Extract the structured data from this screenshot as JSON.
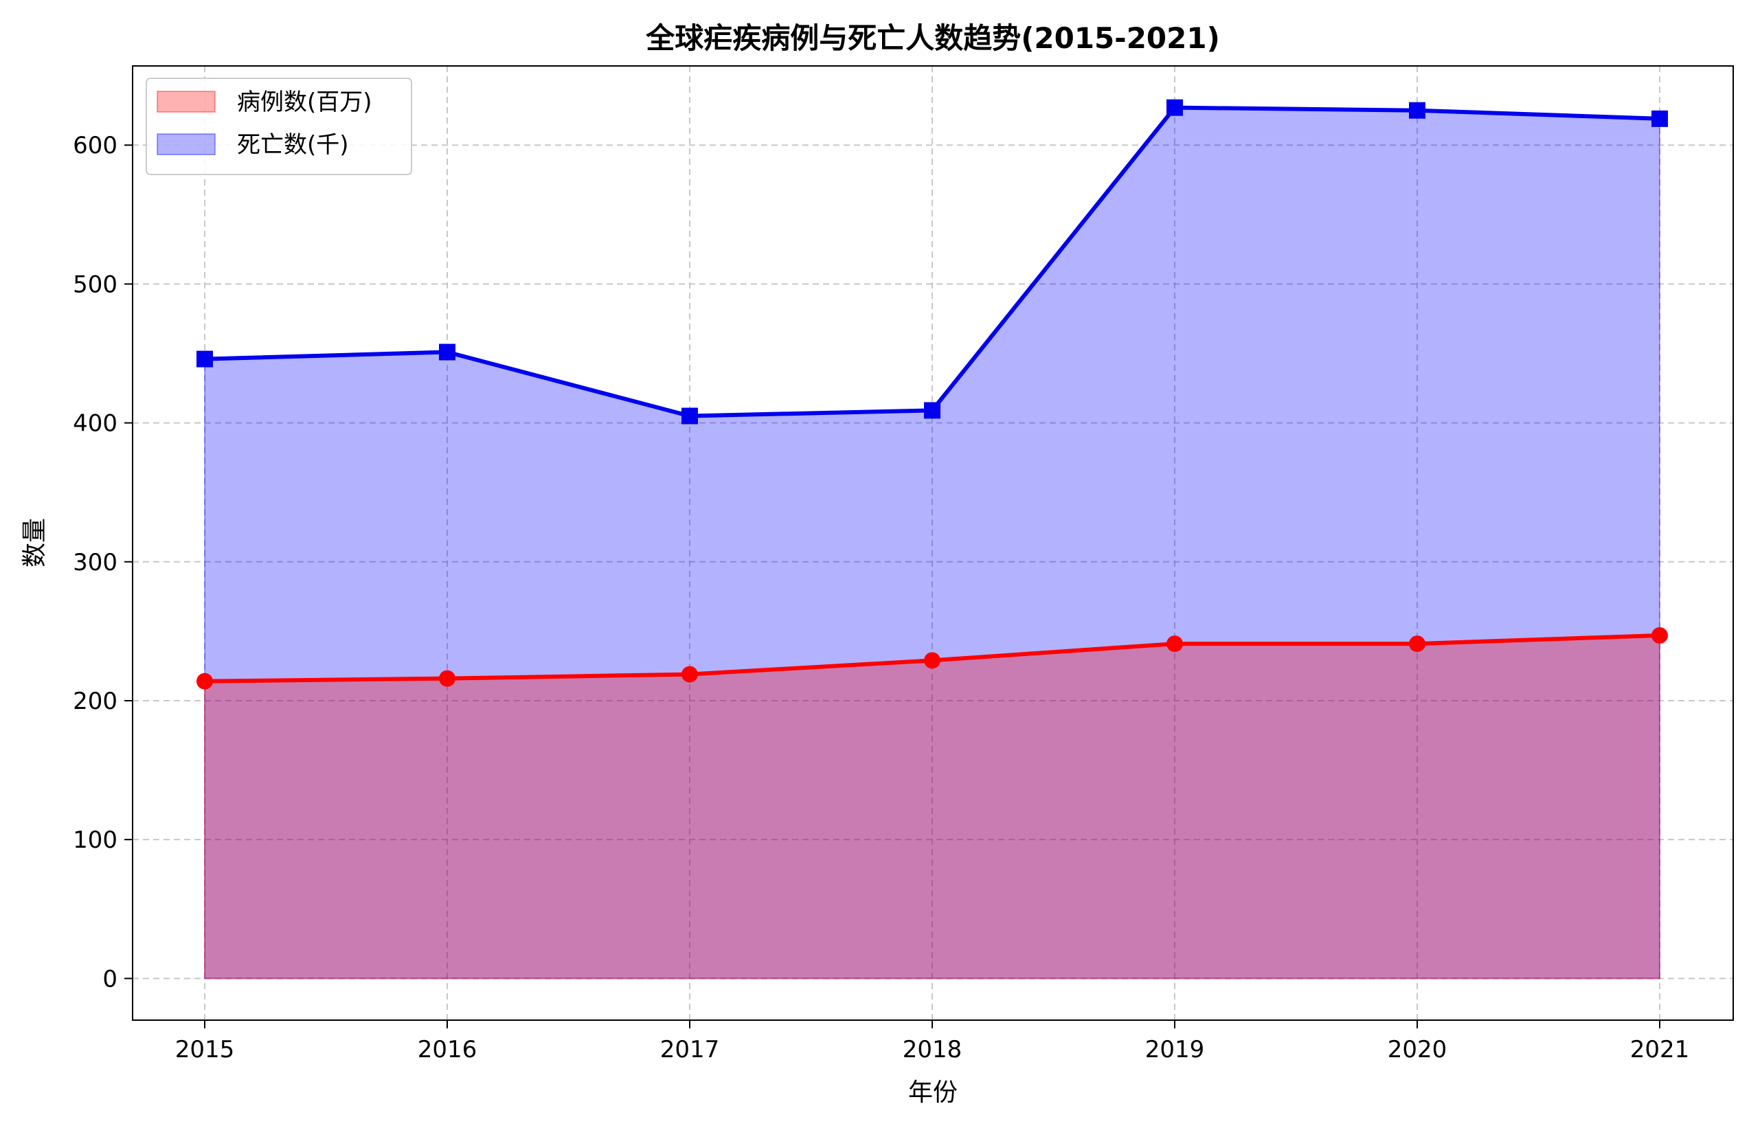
{
  "chart_data": {
    "type": "area",
    "title": "全球疟疾病例与死亡人数趋势(2015-2021)",
    "xlabel": "年份",
    "ylabel": "数量",
    "x": [
      "2015",
      "2016",
      "2017",
      "2018",
      "2019",
      "2020",
      "2021"
    ],
    "ylim": [
      -30,
      657
    ],
    "yticks": [
      0,
      100,
      200,
      300,
      400,
      500,
      600
    ],
    "grid": true,
    "legend_position": "top-left",
    "series": [
      {
        "name": "病例数(百万)",
        "values": [
          214,
          216,
          219,
          229,
          241,
          241,
          247
        ],
        "line_color": "#ff0000",
        "fill_color": "#ff0000",
        "marker": "circle"
      },
      {
        "name": "死亡数(千)",
        "values": [
          446,
          451,
          405,
          409,
          627,
          625,
          619
        ],
        "line_color": "#0000ee",
        "fill_color": "#0000ff",
        "marker": "square"
      }
    ]
  }
}
